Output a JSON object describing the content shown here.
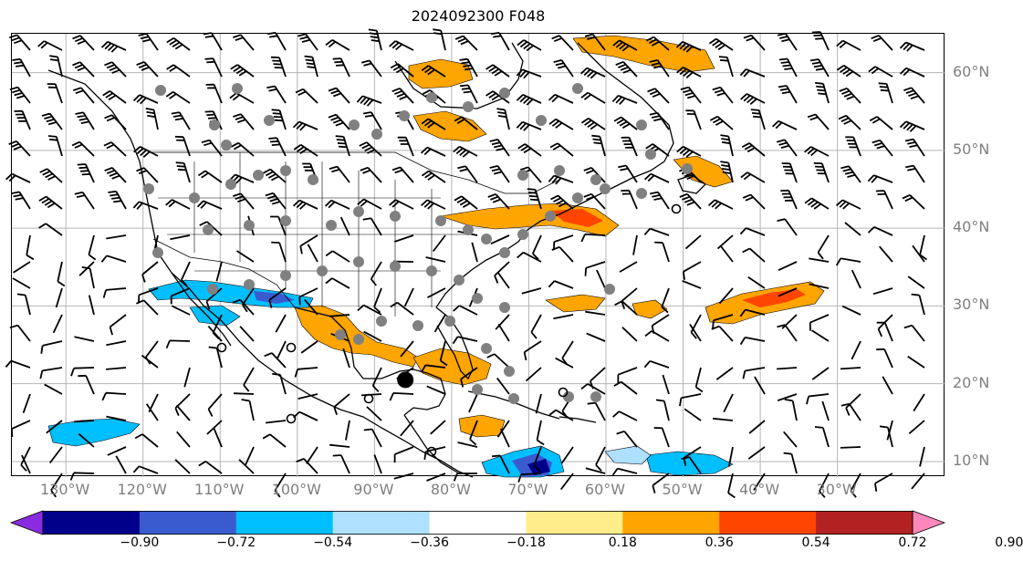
{
  "title": "2024092300 F048",
  "map": {
    "projection": "cylindrical",
    "lon_range": [
      -137,
      -16
    ],
    "lat_range": [
      8,
      65
    ],
    "lat_ticks": [
      {
        "value": 60,
        "label": "60°N"
      },
      {
        "value": 50,
        "label": "50°N"
      },
      {
        "value": 40,
        "label": "40°N"
      },
      {
        "value": 30,
        "label": "30°N"
      },
      {
        "value": 20,
        "label": "20°N"
      },
      {
        "value": 10,
        "label": "10°N"
      }
    ],
    "lon_ticks": [
      {
        "value": -130,
        "label": "130°W"
      },
      {
        "value": -120,
        "label": "120°W"
      },
      {
        "value": -110,
        "label": "110°W"
      },
      {
        "value": -100,
        "label": "100°W"
      },
      {
        "value": -90,
        "label": "90°W"
      },
      {
        "value": -80,
        "label": "80°W"
      },
      {
        "value": -70,
        "label": "70°W"
      },
      {
        "value": -60,
        "label": "60°W"
      },
      {
        "value": -50,
        "label": "50°W"
      },
      {
        "value": -40,
        "label": "40°W"
      },
      {
        "value": -30,
        "label": "30°W"
      }
    ],
    "gridlines": true,
    "grid_color": "#b4b4b4",
    "coastline_color": "#000000",
    "barb_color": "#000000",
    "station_dot_color": "#808080",
    "storm_marker_color": "#000000"
  },
  "colorbar": {
    "colors": [
      "#8a2be2",
      "#00008b",
      "#3a5bd0",
      "#00bfff",
      "#aee0ff",
      "#ffffff",
      "#ffec8b",
      "#ffa500",
      "#ff4500",
      "#b22222",
      "#ff88bb"
    ],
    "tick_labels": [
      "−0.90",
      "−0.72",
      "−0.54",
      "−0.36",
      "−0.18",
      "0.18",
      "0.36",
      "0.54",
      "0.72",
      "0.90"
    ],
    "extend": "both"
  },
  "shaded_areas": [
    {
      "level": 0.36,
      "color": "#ffa500",
      "region": "Gulf of Mexico / Texas"
    },
    {
      "level": 0.36,
      "color": "#ffa500",
      "region": "Central Atlantic"
    },
    {
      "level": 0.54,
      "color": "#ff4500",
      "region": "Mid-Atlantic coast"
    },
    {
      "level": -0.36,
      "color": "#00bfff",
      "region": "Eastern Pacific"
    },
    {
      "level": -0.72,
      "color": "#00008b",
      "region": "Central America"
    }
  ],
  "storm_center": {
    "lon": -86,
    "lat": 20.5
  }
}
